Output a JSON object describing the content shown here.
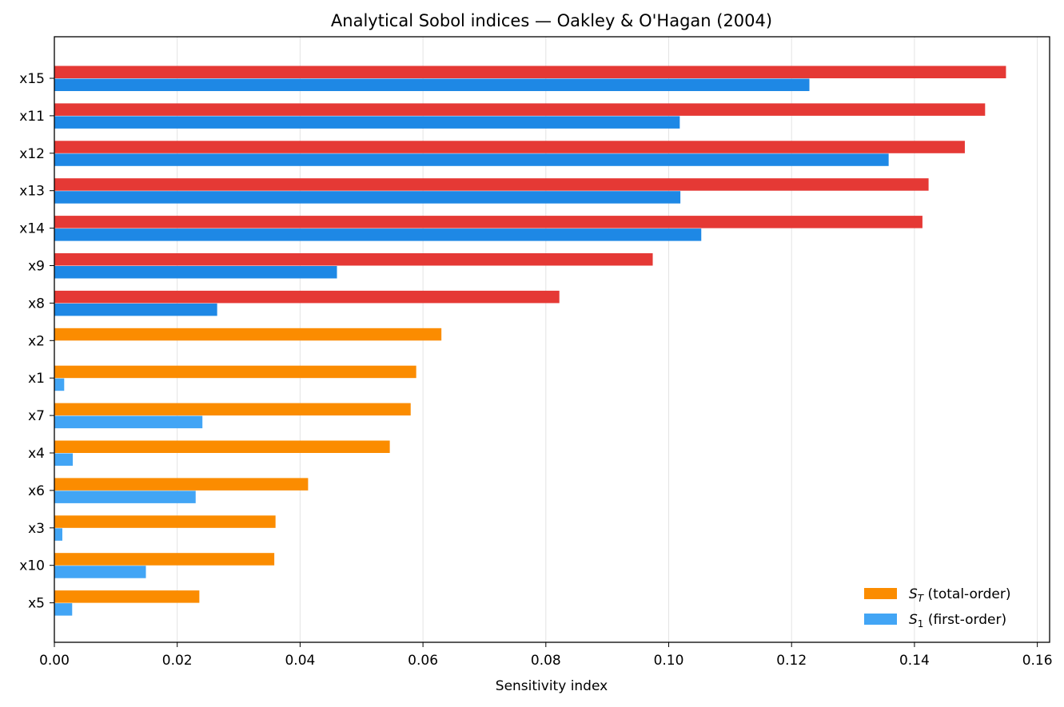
{
  "chart_data": {
    "type": "bar",
    "orientation": "horizontal",
    "title": "Analytical Sobol indices — Oakley & O'Hagan (2004)",
    "xlabel": "Sensitivity index",
    "ylabel": "",
    "xlim": [
      0.0,
      0.162
    ],
    "x_ticks": [
      "0.00",
      "0.02",
      "0.04",
      "0.06",
      "0.08",
      "0.10",
      "0.12",
      "0.14",
      "0.16"
    ],
    "x_tick_values": [
      0.0,
      0.02,
      0.04,
      0.06,
      0.08,
      0.1,
      0.12,
      0.14,
      0.16
    ],
    "grid": "vertical",
    "legend_position": "bottom-right",
    "categories": [
      "x15",
      "x11",
      "x12",
      "x13",
      "x14",
      "x9",
      "x8",
      "x2",
      "x1",
      "x7",
      "x4",
      "x6",
      "x3",
      "x10",
      "x5"
    ],
    "series": [
      {
        "name": "S_T (total-order)",
        "key": "ST",
        "values": [
          0.1549,
          0.1515,
          0.1482,
          0.1423,
          0.1413,
          0.0974,
          0.0822,
          0.063,
          0.0589,
          0.058,
          0.0546,
          0.0413,
          0.036,
          0.0358,
          0.0236
        ]
      },
      {
        "name": "S_1 (first-order)",
        "key": "S1",
        "values": [
          0.1229,
          0.1018,
          0.1358,
          0.1019,
          0.1053,
          0.046,
          0.0265,
          0.0,
          0.0016,
          0.0241,
          0.003,
          0.023,
          0.0013,
          0.0149,
          0.0029
        ]
      }
    ],
    "highlight": {
      "categories": [
        "x15",
        "x11",
        "x12",
        "x13",
        "x14",
        "x9",
        "x8"
      ],
      "colors": {
        "ST": "#e53935",
        "S1": "#1e88e5"
      }
    },
    "colors": {
      "ST": "#fb8c00",
      "S1": "#42a5f5"
    },
    "legend": [
      {
        "symbol": "S",
        "sub": "T",
        "text": " (total-order)",
        "key": "ST"
      },
      {
        "symbol": "S",
        "sub": "1",
        "text": " (first-order)",
        "key": "S1"
      }
    ]
  }
}
